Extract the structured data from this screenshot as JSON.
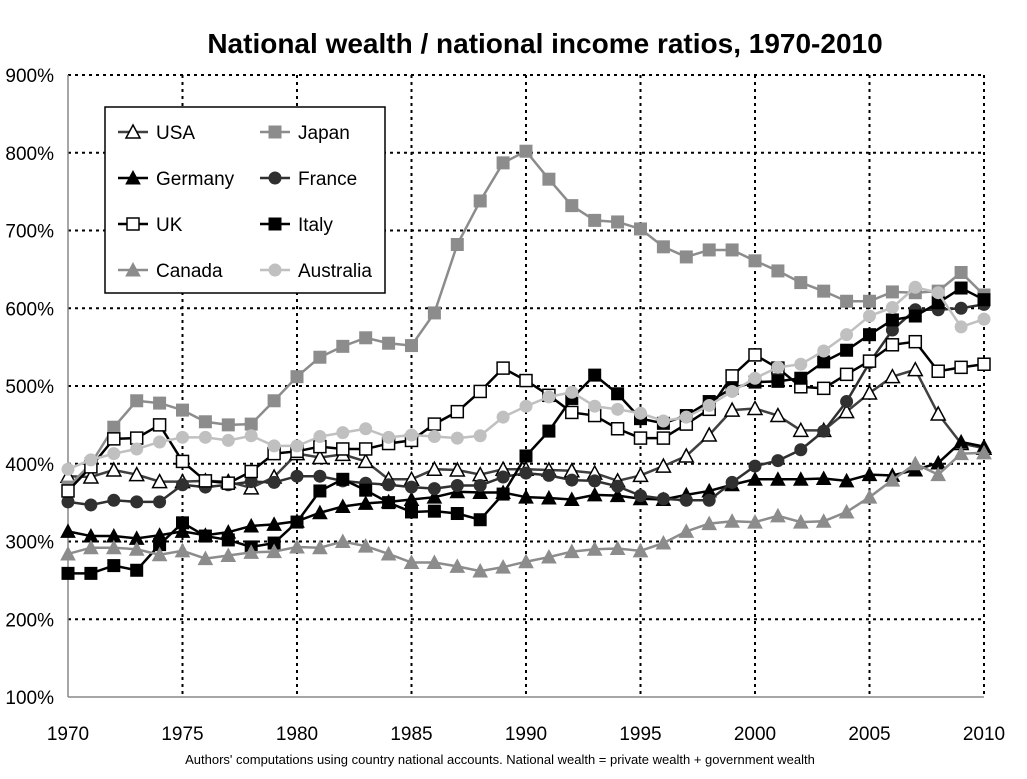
{
  "chart_data": {
    "type": "line",
    "title": "National wealth / national income ratios, 1970-2010",
    "footnote": "Authors' computations using country national accounts. National wealth = private wealth + government wealth",
    "xlabel": "",
    "ylabel": "",
    "xlim": [
      1970,
      2010
    ],
    "ylim": [
      100,
      900
    ],
    "x_ticks": [
      "1970",
      "1975",
      "1980",
      "1985",
      "1990",
      "1995",
      "2000",
      "2005",
      "2010"
    ],
    "y_ticks": [
      "100%",
      "200%",
      "300%",
      "400%",
      "500%",
      "600%",
      "700%",
      "800%",
      "900%"
    ],
    "grid": true,
    "legend_position": "top-left",
    "x": [
      1970,
      1971,
      1972,
      1973,
      1974,
      1975,
      1976,
      1977,
      1978,
      1979,
      1980,
      1981,
      1982,
      1983,
      1984,
      1985,
      1986,
      1987,
      1988,
      1989,
      1990,
      1991,
      1992,
      1993,
      1994,
      1995,
      1996,
      1997,
      1998,
      1999,
      2000,
      2001,
      2002,
      2003,
      2004,
      2005,
      2006,
      2007,
      2008,
      2009,
      2010
    ],
    "series": [
      {
        "name": "USA",
        "marker": "triangle-open",
        "color": "#404040",
        "values": [
          384,
          383,
          392,
          386,
          377,
          377,
          378,
          377,
          369,
          383,
          413,
          408,
          412,
          403,
          380,
          380,
          393,
          392,
          386,
          393,
          393,
          392,
          391,
          388,
          378,
          385,
          397,
          410,
          437,
          469,
          471,
          462,
          443,
          443,
          467,
          491,
          512,
          521,
          464,
          426,
          420
        ]
      },
      {
        "name": "Japan",
        "marker": "square",
        "color": "#8c8c8c",
        "values": [
          370,
          400,
          447,
          481,
          478,
          469,
          454,
          450,
          451,
          481,
          512,
          537,
          551,
          562,
          555,
          552,
          594,
          682,
          738,
          787,
          802,
          766,
          732,
          713,
          711,
          702,
          679,
          666,
          675,
          675,
          661,
          648,
          633,
          622,
          609,
          609,
          621,
          620,
          622,
          646,
          617
        ]
      },
      {
        "name": "Germany",
        "marker": "triangle",
        "color": "#000000",
        "values": [
          313,
          307,
          307,
          304,
          308,
          313,
          308,
          312,
          320,
          322,
          326,
          337,
          345,
          349,
          351,
          354,
          357,
          364,
          363,
          363,
          357,
          356,
          354,
          360,
          359,
          355,
          354,
          360,
          365,
          373,
          380,
          380,
          380,
          381,
          378,
          386,
          385,
          392,
          401,
          428,
          422
        ]
      },
      {
        "name": "France",
        "marker": "circle",
        "color": "#303030",
        "values": [
          351,
          347,
          353,
          351,
          351,
          373,
          370,
          373,
          377,
          376,
          384,
          384,
          378,
          375,
          373,
          370,
          368,
          372,
          372,
          383,
          388,
          385,
          379,
          378,
          371,
          359,
          355,
          353,
          353,
          376,
          397,
          404,
          418,
          442,
          480,
          530,
          572,
          598,
          598,
          600,
          605
        ]
      },
      {
        "name": "UK",
        "marker": "square-open",
        "color": "#000000",
        "values": [
          365,
          396,
          432,
          433,
          450,
          403,
          378,
          375,
          390,
          413,
          416,
          422,
          419,
          419,
          426,
          430,
          451,
          467,
          493,
          523,
          507,
          488,
          466,
          462,
          445,
          433,
          433,
          451,
          470,
          513,
          540,
          523,
          499,
          497,
          515,
          532,
          553,
          557,
          519,
          524,
          528
        ]
      },
      {
        "name": "Italy",
        "marker": "square",
        "color": "#000000",
        "values": [
          259,
          259,
          269,
          263,
          296,
          324,
          307,
          302,
          293,
          298,
          325,
          365,
          380,
          366,
          350,
          338,
          339,
          336,
          328,
          361,
          410,
          442,
          484,
          514,
          490,
          458,
          452,
          462,
          480,
          497,
          505,
          506,
          510,
          531,
          546,
          566,
          585,
          590,
          607,
          626,
          611
        ]
      },
      {
        "name": "Canada",
        "marker": "triangle",
        "color": "#8c8c8c",
        "values": [
          284,
          292,
          292,
          290,
          283,
          288,
          278,
          282,
          286,
          287,
          293,
          292,
          300,
          294,
          284,
          273,
          273,
          268,
          262,
          267,
          274,
          280,
          287,
          290,
          291,
          288,
          298,
          313,
          323,
          326,
          325,
          333,
          325,
          326,
          338,
          357,
          379,
          400,
          386,
          413,
          414
        ]
      },
      {
        "name": "Australia",
        "marker": "circle",
        "color": "#c0c0c0",
        "values": [
          393,
          405,
          413,
          419,
          428,
          434,
          434,
          430,
          436,
          423,
          423,
          435,
          440,
          445,
          434,
          437,
          435,
          433,
          436,
          460,
          474,
          486,
          492,
          474,
          470,
          465,
          455,
          460,
          475,
          493,
          510,
          524,
          528,
          545,
          566,
          590,
          601,
          627,
          620,
          576,
          586
        ]
      }
    ]
  }
}
